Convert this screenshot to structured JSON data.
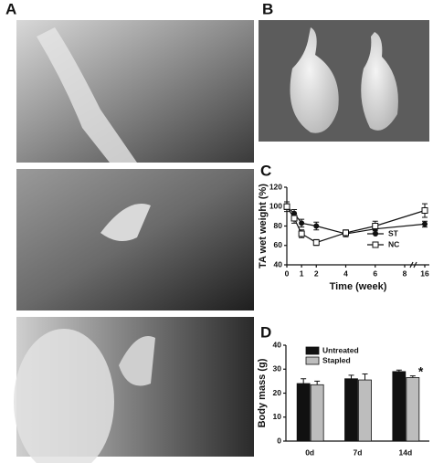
{
  "panel_labels": [
    "A",
    "B",
    "C",
    "D"
  ],
  "chart_data": [
    {
      "type": "line",
      "x_label": "Time (week)",
      "y_label": "TA wet weight (%)",
      "xlim": [
        0,
        16
      ],
      "xticks": [
        0,
        1,
        2,
        4,
        6,
        8,
        16
      ],
      "axis_break": true,
      "ylim": [
        40,
        120
      ],
      "yticks": [
        40,
        60,
        80,
        100,
        120
      ],
      "series": [
        {
          "name": "ST",
          "color": "#111111",
          "marker": "circle",
          "x": [
            0,
            0.5,
            1,
            2,
            4,
            6,
            16
          ],
          "values": [
            100,
            93,
            83,
            80,
            72,
            77,
            82
          ],
          "errors": [
            3,
            4,
            4,
            4,
            3,
            4,
            3
          ]
        },
        {
          "name": "NC",
          "color": "#111111",
          "marker": "open-square",
          "x": [
            0,
            0.5,
            1,
            2,
            4,
            6,
            16
          ],
          "values": [
            100,
            88,
            72,
            63,
            73,
            80,
            96
          ],
          "errors": [
            5,
            5,
            4,
            3,
            3,
            5,
            7
          ]
        }
      ],
      "legend": "lower-right"
    },
    {
      "type": "bar",
      "y_label": "Body mass (g)",
      "categories": [
        "0d",
        "7d",
        "14d"
      ],
      "ylim": [
        0,
        40
      ],
      "yticks": [
        0,
        10,
        20,
        30,
        40
      ],
      "series": [
        {
          "name": "Untreated",
          "color": "#111111",
          "values": [
            24,
            26,
            29
          ],
          "errors": [
            2,
            1.5,
            0.6
          ]
        },
        {
          "name": "Stapled",
          "color": "#bdbdbd",
          "values": [
            23.5,
            25.5,
            26.5
          ],
          "errors": [
            1.5,
            2.5,
            0.7
          ]
        }
      ],
      "annotation": "*",
      "legend": "upper-left"
    }
  ]
}
